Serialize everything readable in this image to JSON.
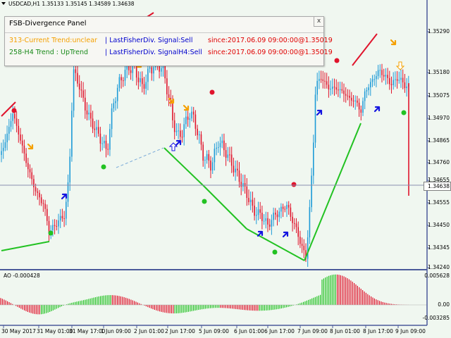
{
  "header": {
    "symbol_info": "USDCAD,H1  1.35133 1.35145 1.34589 1.34638"
  },
  "panel": {
    "title": "FSB-Divergence Panel",
    "close_label": "x",
    "row1": {
      "trend": "313-Current Trend:unclear",
      "signal": "| LastFisherDiv. Signal:Sell",
      "since": "since:2017.06.09 09:00:00@1.35019"
    },
    "row2": {
      "trend": "258-H4 Trend : UpTrend",
      "signal": "| LastFisherDiv. SignalH4:Sell",
      "since": "since:2017.06.09 09:00:00@1.35019"
    }
  },
  "price_axis": {
    "labels": [
      "1.35290",
      "1.35180",
      "1.35075",
      "1.34970",
      "1.34865",
      "1.34760",
      "1.34655",
      "1.34555",
      "1.34450",
      "1.34345",
      "1.34240"
    ],
    "current": "1.34638"
  },
  "ao": {
    "label": "AO -0.000428",
    "axis_labels": [
      "0.005628",
      "0.00",
      "-0.003285"
    ]
  },
  "time_axis": {
    "labels": [
      "30 May 2017",
      "31 May 01:00",
      "31 May 17:00",
      "1 Jun 09:00",
      "2 Jun 01:00",
      "2 Jun 17:00",
      "5 Jun 09:00",
      "6 Jun 01:00",
      "6 Jun 17:00",
      "7 Jun 09:00",
      "8 Jun 01:00",
      "8 Jun 17:00",
      "9 Jun 09:00"
    ]
  },
  "colors": {
    "background": "#f0f7f0",
    "bull_candle": "#1e9bd7",
    "bear_candle": "#e0142c",
    "support_line": "#22c222",
    "resistance_line": "#e0142c",
    "buy_arrow": "#1414e0",
    "sell_arrow": "#f5a000",
    "grid_border": "#4a5a9a"
  }
}
